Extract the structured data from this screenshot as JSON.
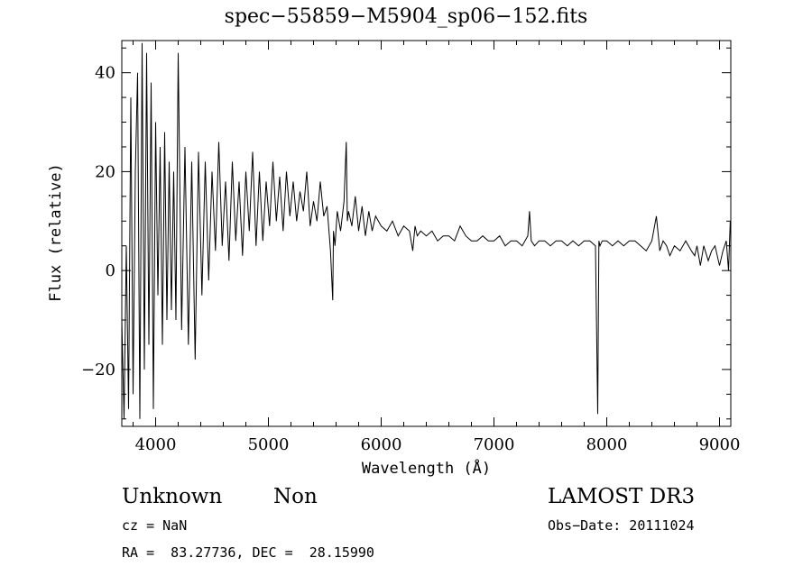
{
  "chart_data": {
    "type": "line",
    "title": "spec−55859−M5904_sp06−152.fits",
    "xlabel": "Wavelength (Å)",
    "ylabel": "Flux (relative)",
    "xlim": [
      3700,
      9100
    ],
    "ylim": [
      -31.5,
      46.5
    ],
    "xticks": [
      4000,
      5000,
      6000,
      7000,
      8000,
      9000
    ],
    "xtick_labels": [
      "4000",
      "5000",
      "6000",
      "7000",
      "8000",
      "9000"
    ],
    "yticks": [
      -20,
      0,
      20,
      40
    ],
    "ytick_labels": [
      "−20",
      "0",
      "20",
      "40"
    ],
    "grid": false,
    "series": [
      {
        "color": "#000000",
        "x": [
          3700,
          3720,
          3740,
          3760,
          3780,
          3800,
          3820,
          3840,
          3860,
          3880,
          3900,
          3920,
          3940,
          3960,
          3980,
          4000,
          4020,
          4040,
          4060,
          4080,
          4100,
          4120,
          4140,
          4160,
          4180,
          4200,
          4230,
          4260,
          4290,
          4320,
          4350,
          4380,
          4410,
          4440,
          4470,
          4500,
          4530,
          4560,
          4590,
          4620,
          4650,
          4680,
          4710,
          4740,
          4770,
          4800,
          4830,
          4860,
          4890,
          4920,
          4950,
          4980,
          5010,
          5040,
          5070,
          5100,
          5130,
          5160,
          5190,
          5220,
          5250,
          5280,
          5310,
          5340,
          5370,
          5400,
          5430,
          5460,
          5490,
          5520,
          5550,
          5570,
          5577,
          5590,
          5610,
          5640,
          5670,
          5690,
          5700,
          5710,
          5740,
          5770,
          5800,
          5830,
          5860,
          5890,
          5920,
          5950,
          6000,
          6050,
          6100,
          6150,
          6200,
          6250,
          6280,
          6300,
          6320,
          6350,
          6400,
          6450,
          6500,
          6550,
          6600,
          6650,
          6700,
          6750,
          6800,
          6850,
          6900,
          6950,
          7000,
          7050,
          7100,
          7150,
          7200,
          7250,
          7300,
          7315,
          7330,
          7360,
          7400,
          7450,
          7500,
          7550,
          7600,
          7650,
          7700,
          7750,
          7800,
          7850,
          7900,
          7920,
          7930,
          7940,
          7960,
          8000,
          8050,
          8100,
          8150,
          8200,
          8250,
          8300,
          8350,
          8400,
          8440,
          8470,
          8500,
          8530,
          8560,
          8600,
          8650,
          8700,
          8750,
          8780,
          8800,
          8830,
          8860,
          8900,
          8930,
          8960,
          9000,
          9030,
          9060,
          9080,
          9095
        ],
        "y": [
          -10,
          -30,
          5,
          -28,
          35,
          -25,
          20,
          40,
          -30,
          46,
          -20,
          44,
          -15,
          38,
          -28,
          30,
          -5,
          25,
          -15,
          28,
          -10,
          22,
          -8,
          20,
          -10,
          44,
          -12,
          25,
          -15,
          22,
          -18,
          24,
          -5,
          22,
          -2,
          20,
          4,
          26,
          5,
          18,
          2,
          22,
          6,
          18,
          3,
          20,
          8,
          24,
          5,
          20,
          6,
          18,
          9,
          22,
          10,
          19,
          8,
          20,
          11,
          18,
          10,
          16,
          12,
          20,
          9,
          14,
          10,
          18,
          11,
          13,
          4,
          -6,
          8,
          5,
          12,
          8,
          14,
          26,
          10,
          12,
          9,
          15,
          8,
          13,
          7,
          12,
          8,
          11,
          9,
          8,
          10,
          7,
          9,
          8,
          4,
          9,
          7,
          8,
          7,
          8,
          6,
          7,
          7,
          6,
          9,
          7,
          6,
          6,
          7,
          6,
          6,
          7,
          5,
          6,
          6,
          5,
          7,
          12,
          6,
          5,
          6,
          6,
          5,
          6,
          6,
          5,
          6,
          5,
          6,
          6,
          5,
          -29,
          6,
          5,
          6,
          6,
          5,
          6,
          5,
          6,
          6,
          5,
          4,
          6,
          11,
          4,
          6,
          5,
          3,
          5,
          4,
          6,
          4,
          3,
          5,
          1,
          5,
          2,
          4,
          5,
          1,
          4,
          6,
          0,
          10
        ]
      }
    ]
  },
  "header": {
    "object_class": "Unknown",
    "object_subclass": "Non",
    "survey": "LAMOST DR3",
    "cz": "cz = NaN",
    "obs_date": "Obs−Date: 20111024",
    "ra_dec": "RA =  83.27736, DEC =  28.15990"
  }
}
